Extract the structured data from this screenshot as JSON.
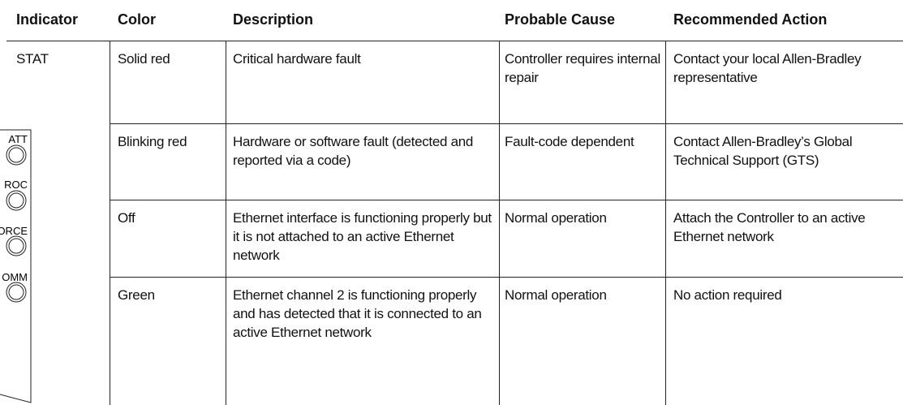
{
  "table": {
    "columns": [
      "Indicator",
      "Color",
      "Description",
      "Probable Cause",
      "Recommended Action"
    ],
    "rows": [
      [
        "STAT",
        "Solid red",
        "Critical hardware fault",
        "Controller requires internal repair",
        "Contact your local Allen-Bradley representative"
      ],
      [
        null,
        "Blinking red",
        "Hardware or software fault (detected and reported via a code)",
        "Fault-code dependent",
        "Contact Allen-Bradley’s Global Technical Support (GTS)"
      ],
      [
        null,
        "Off",
        "Ethernet interface is functioning properly but it is not attached to an active Ethernet network",
        "Normal operation",
        "Attach the Controller to an active Ethernet network"
      ],
      [
        null,
        "Green",
        "Ethernet channel 2 is functioning properly and has detected that it is connected to an active Ethernet network",
        "Normal operation",
        "No action required"
      ]
    ]
  },
  "device": {
    "labels": [
      "ATT",
      "ROC",
      "ORCE",
      "OMM"
    ]
  }
}
